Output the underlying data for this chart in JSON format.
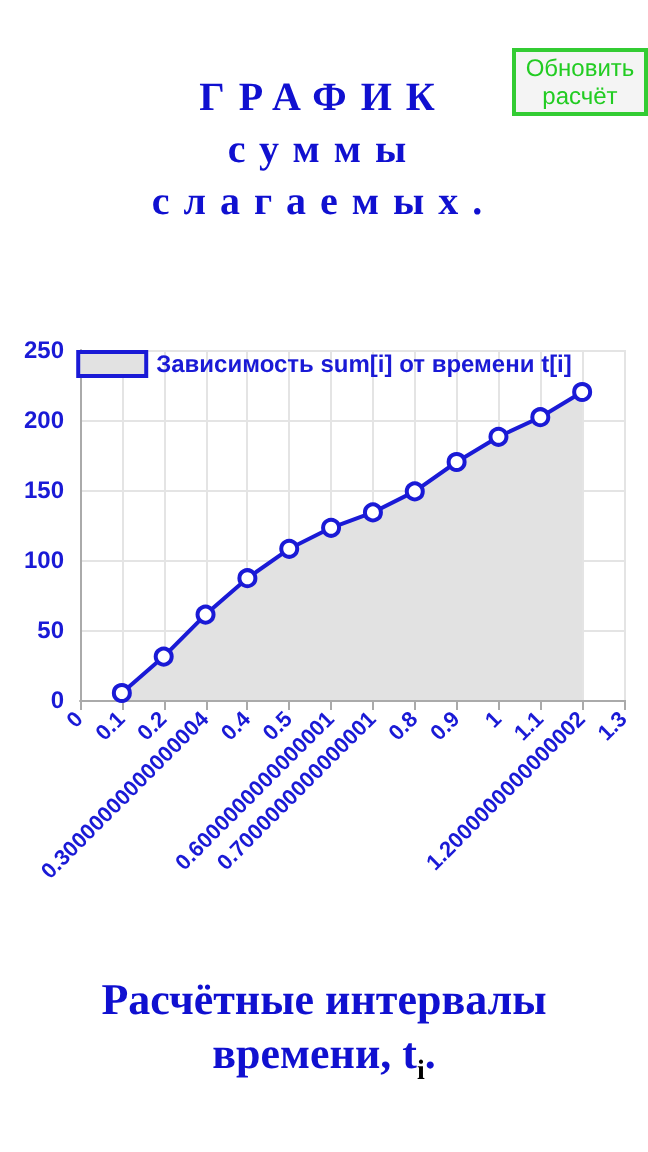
{
  "chart_data": {
    "type": "area",
    "title": "ГРАФИК\nсуммы\nслагаемых.",
    "xlabel": "Расчётные интервалы времени, t$_{i}$.",
    "annotations": [
      "Обновить расчёт"
    ],
    "categories": [
      "0",
      "0.1",
      "0.2",
      "0.30000000000000004",
      "0.4",
      "0.5",
      "0.6000000000000001",
      "0.7000000000000001",
      "0.8",
      "0.9",
      "1",
      "1.1",
      "1.2000000000000002",
      "1.3"
    ],
    "series": [
      {
        "name": "Зависимость sum[i] от времени t[i]",
        "color": "#1a1ad6",
        "values": [
          null,
          5,
          31,
          61,
          87,
          108,
          123,
          134,
          149,
          170,
          188,
          202,
          220,
          null
        ]
      }
    ],
    "ylim": [
      0,
      250
    ],
    "yticks": [
      0,
      50,
      100,
      150,
      200,
      250
    ],
    "grid": true,
    "legend": "top",
    "marker": "circle",
    "line_style": "solid"
  }
}
